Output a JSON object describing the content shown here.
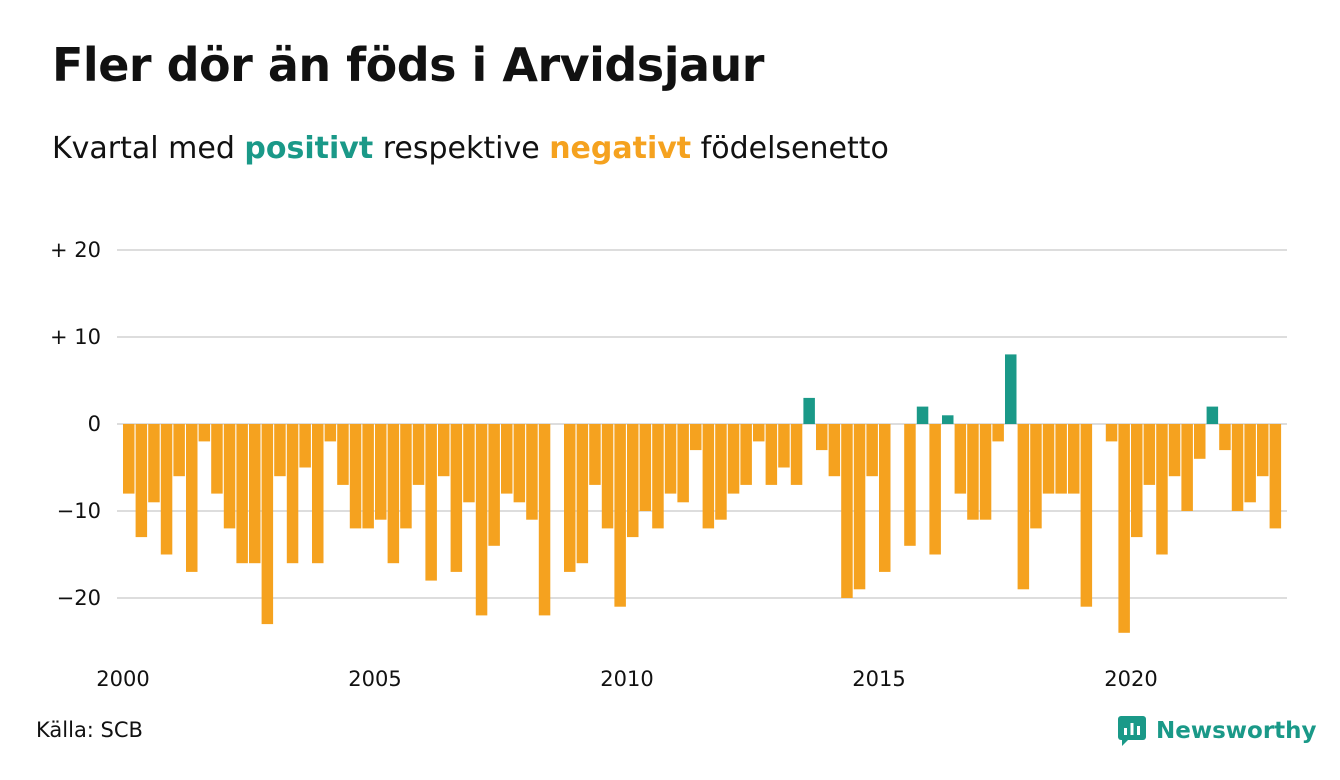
{
  "title": "Fler dör än föds i Arvidsjaur",
  "subtitle": {
    "pre": "Kvartal med ",
    "positive_word": "positivt",
    "middle": " respektive ",
    "negative_word": "negativt",
    "post": " födelsenetto"
  },
  "source": "Källa: SCB",
  "brand": {
    "name": "Newsworthy",
    "icon": "newsworthy-logo-icon"
  },
  "colors": {
    "positive": "#1a9988",
    "negative": "#f5a21f",
    "grid": "#dddddd",
    "text": "#111111"
  },
  "chart_data": {
    "type": "bar",
    "title": "Fler dör än föds i Arvidsjaur",
    "subtitle": "Kvartal med positivt respektive negativt födelsenetto",
    "xlabel": "",
    "ylabel": "",
    "x_start": 2000.0,
    "x_step": 0.25,
    "xlim": [
      2000,
      2023.25
    ],
    "ylim": [
      -25,
      22
    ],
    "grid": true,
    "legend": "none",
    "y_ticks": [
      20,
      10,
      0,
      -10,
      -20
    ],
    "y_tick_labels": [
      "+ 20",
      "+ 10",
      "0",
      "−10",
      "−20"
    ],
    "x_ticks": [
      2000,
      2005,
      2010,
      2015,
      2020
    ],
    "x_tick_labels": [
      "2000",
      "2005",
      "2010",
      "2015",
      "2020"
    ],
    "values": [
      -8,
      -13,
      -9,
      -15,
      -6,
      -17,
      -2,
      -8,
      -12,
      -16,
      -16,
      -23,
      -6,
      -16,
      -5,
      -16,
      -2,
      -7,
      -12,
      -12,
      -11,
      -16,
      -12,
      -7,
      -18,
      -6,
      -17,
      -9,
      -22,
      -14,
      -8,
      -9,
      -11,
      -22,
      0,
      -17,
      -16,
      -7,
      -12,
      -21,
      -13,
      -10,
      -12,
      -8,
      -9,
      -3,
      -12,
      -11,
      -8,
      -7,
      -2,
      -7,
      -5,
      -7,
      3,
      -3,
      -6,
      -20,
      -19,
      -6,
      -17,
      0,
      -14,
      2,
      -15,
      1,
      -8,
      -11,
      -11,
      -2,
      8,
      -19,
      -12,
      -8,
      -8,
      -8,
      -21,
      0,
      -2,
      -24,
      -13,
      -7,
      -15,
      -6,
      -10,
      -4,
      2,
      -3,
      -10,
      -9,
      -6,
      -12
    ]
  }
}
